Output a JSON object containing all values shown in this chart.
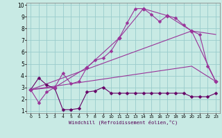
{
  "xlabel": "Windchill (Refroidissement éolien,°C)",
  "xlim": [
    -0.5,
    23.5
  ],
  "ylim": [
    0.8,
    10.2
  ],
  "xticks": [
    0,
    1,
    2,
    3,
    4,
    5,
    6,
    7,
    8,
    9,
    10,
    11,
    12,
    13,
    14,
    15,
    16,
    17,
    18,
    19,
    20,
    21,
    22,
    23
  ],
  "yticks": [
    1,
    2,
    3,
    4,
    5,
    6,
    7,
    8,
    9,
    10
  ],
  "bg_color": "#c8eae4",
  "line_color": "#993399",
  "line_color2": "#660066",
  "grid_color": "#99cccc",
  "curve1_x": [
    0,
    1,
    2,
    3,
    4,
    5,
    6,
    7,
    8,
    9,
    10,
    11,
    12,
    13,
    14,
    15,
    16,
    17,
    18,
    19,
    20,
    21,
    22,
    23
  ],
  "curve1_y": [
    2.8,
    1.7,
    2.6,
    3.0,
    4.2,
    3.3,
    3.5,
    4.7,
    5.3,
    5.5,
    6.1,
    7.2,
    8.5,
    9.7,
    9.7,
    9.2,
    8.6,
    9.1,
    8.9,
    8.3,
    7.8,
    7.5,
    4.8,
    3.5
  ],
  "curve2_x": [
    0,
    1,
    2,
    3,
    4,
    5,
    6,
    7,
    8,
    9,
    10,
    11,
    12,
    13,
    14,
    15,
    16,
    17,
    18,
    19,
    20,
    21,
    22,
    23
  ],
  "curve2_y": [
    2.8,
    3.8,
    3.2,
    2.9,
    1.1,
    1.1,
    1.2,
    2.6,
    2.7,
    3.0,
    2.5,
    2.5,
    2.5,
    2.5,
    2.5,
    2.5,
    2.5,
    2.5,
    2.5,
    2.5,
    2.2,
    2.2,
    2.2,
    2.5
  ],
  "curve3_x": [
    0,
    3,
    7,
    11,
    14,
    17,
    20,
    23
  ],
  "curve3_y": [
    2.8,
    3.0,
    4.7,
    7.2,
    9.7,
    9.1,
    7.8,
    3.5
  ],
  "curve4_x": [
    0,
    20,
    23
  ],
  "curve4_y": [
    2.8,
    7.8,
    7.5
  ],
  "curve5_x": [
    0,
    20,
    23
  ],
  "curve5_y": [
    2.8,
    4.8,
    3.5
  ],
  "marker": "D",
  "markersize": 2.5
}
